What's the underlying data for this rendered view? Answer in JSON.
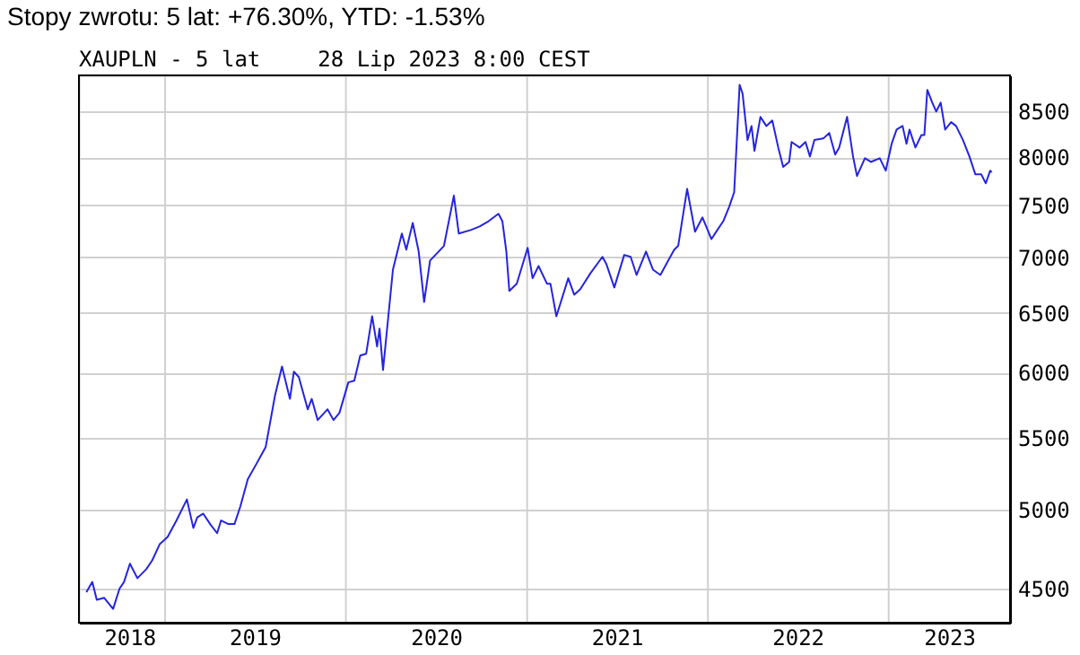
{
  "chart_data": {
    "type": "line",
    "title": "XAUPLN - 5 lat",
    "subtitle": "28 Lip 2023 8:00 CEST",
    "annotations": [
      "Stopy zwrotu: 5 lat: +76.30%, YTD: -1.53%"
    ],
    "x": [
      "2018-07-26",
      "2018-08-07",
      "2018-08-16",
      "2018-08-31",
      "2018-09-18",
      "2018-10-01",
      "2018-10-10",
      "2018-10-22",
      "2018-11-06",
      "2018-11-24",
      "2018-12-06",
      "2018-12-21",
      "2019-01-06",
      "2019-01-24",
      "2019-02-14",
      "2019-02-27",
      "2019-03-07",
      "2019-03-19",
      "2019-04-02",
      "2019-04-16",
      "2019-04-24",
      "2019-05-09",
      "2019-05-21",
      "2019-06-02",
      "2019-06-17",
      "2019-07-05",
      "2019-07-23",
      "2019-08-11",
      "2019-08-25",
      "2019-09-10",
      "2019-09-18",
      "2019-09-28",
      "2019-10-16",
      "2019-10-24",
      "2019-11-05",
      "2019-11-25",
      "2019-12-07",
      "2019-12-19",
      "2020-01-06",
      "2020-01-18",
      "2020-01-30",
      "2020-02-11",
      "2020-02-23",
      "2020-03-04",
      "2020-03-09",
      "2020-03-16",
      "2020-04-05",
      "2020-04-23",
      "2020-05-02",
      "2020-05-15",
      "2020-05-27",
      "2020-06-07",
      "2020-06-19",
      "2020-07-17",
      "2020-08-06",
      "2020-08-16",
      "2020-09-09",
      "2020-09-27",
      "2020-10-15",
      "2020-11-04",
      "2020-11-12",
      "2020-11-20",
      "2020-11-26",
      "2020-12-11",
      "2021-01-02",
      "2021-01-12",
      "2021-01-24",
      "2021-02-10",
      "2021-02-17",
      "2021-03-01",
      "2021-03-25",
      "2021-04-06",
      "2021-04-18",
      "2021-05-09",
      "2021-06-02",
      "2021-06-10",
      "2021-06-26",
      "2021-07-16",
      "2021-07-29",
      "2021-08-10",
      "2021-08-29",
      "2021-09-12",
      "2021-09-27",
      "2021-10-13",
      "2021-10-25",
      "2021-11-02",
      "2021-11-20",
      "2021-12-06",
      "2021-12-21",
      "2022-01-08",
      "2022-01-20",
      "2022-02-01",
      "2022-02-13",
      "2022-02-23",
      "2022-03-06",
      "2022-03-12",
      "2022-03-22",
      "2022-03-30",
      "2022-04-05",
      "2022-04-17",
      "2022-04-29",
      "2022-05-11",
      "2022-05-23",
      "2022-06-02",
      "2022-06-14",
      "2022-06-19",
      "2022-07-05",
      "2022-07-17",
      "2022-07-26",
      "2022-08-04",
      "2022-08-22",
      "2022-09-03",
      "2022-09-15",
      "2022-09-23",
      "2022-10-09",
      "2022-10-21",
      "2022-10-29",
      "2022-11-14",
      "2022-11-26",
      "2022-12-14",
      "2022-12-26",
      "2023-01-07",
      "2023-01-17",
      "2023-01-29",
      "2023-02-06",
      "2023-02-12",
      "2023-02-24",
      "2023-03-08",
      "2023-03-14",
      "2023-03-20",
      "2023-03-30",
      "2023-04-07",
      "2023-04-16",
      "2023-04-25",
      "2023-05-07",
      "2023-05-17",
      "2023-05-31",
      "2023-06-13",
      "2023-06-25",
      "2023-07-07",
      "2023-07-16",
      "2023-07-25",
      "2023-07-28"
    ],
    "series": [
      {
        "color": "#2424e0",
        "values": [
          4478,
          4540,
          4433,
          4445,
          4380,
          4500,
          4540,
          4652,
          4563,
          4618,
          4673,
          4774,
          4820,
          4928,
          5068,
          4879,
          4948,
          4973,
          4904,
          4845,
          4928,
          4904,
          4904,
          5022,
          5207,
          5318,
          5434,
          5823,
          6050,
          5795,
          6009,
          5966,
          5715,
          5795,
          5634,
          5715,
          5634,
          5688,
          5924,
          5937,
          6140,
          6155,
          6470,
          6214,
          6364,
          6023,
          6885,
          7224,
          7071,
          7327,
          7053,
          6594,
          6969,
          7106,
          7598,
          7224,
          7258,
          7293,
          7344,
          7417,
          7344,
          7053,
          6692,
          6757,
          7088,
          6806,
          6918,
          6757,
          6757,
          6470,
          6806,
          6659,
          6706,
          6853,
          7003,
          6936,
          6723,
          7021,
          7003,
          6836,
          7053,
          6885,
          6836,
          6969,
          7071,
          7106,
          7667,
          7242,
          7381,
          7171,
          7258,
          7344,
          7487,
          7633,
          8809,
          8705,
          8183,
          8338,
          8067,
          8439,
          8338,
          8399,
          8102,
          7896,
          7948,
          8162,
          8102,
          8162,
          8006,
          8183,
          8200,
          8261,
          8027,
          8102,
          8439,
          8006,
          7800,
          7987,
          7948,
          7987,
          7856,
          8143,
          8298,
          8338,
          8143,
          8298,
          8102,
          8238,
          8238,
          8749,
          8602,
          8500,
          8602,
          8298,
          8381,
          8338,
          8183,
          8006,
          7817,
          7817,
          7725,
          7856,
          7837
        ]
      }
    ],
    "xlim": [
      "2018-07-11",
      "2023-09-03"
    ],
    "xticks": [
      {
        "value": "2018-10-21",
        "label": "2018"
      },
      {
        "value": "2019-01-01",
        "label": null
      },
      {
        "value": "2019-07-01",
        "label": "2019"
      },
      {
        "value": "2020-01-01",
        "label": null
      },
      {
        "value": "2020-07-01",
        "label": "2020"
      },
      {
        "value": "2021-01-01",
        "label": null
      },
      {
        "value": "2021-07-01",
        "label": "2021"
      },
      {
        "value": "2022-01-01",
        "label": null
      },
      {
        "value": "2022-07-01",
        "label": "2022"
      },
      {
        "value": "2023-01-01",
        "label": null
      },
      {
        "value": "2023-05-03",
        "label": "2023"
      }
    ],
    "ylim": [
      4300,
      8920
    ],
    "yticks": [
      4500,
      5000,
      5500,
      6000,
      6500,
      7000,
      7500,
      8000,
      8500
    ],
    "log": true,
    "grid": true,
    "marker": "none",
    "line_style": "solid"
  }
}
